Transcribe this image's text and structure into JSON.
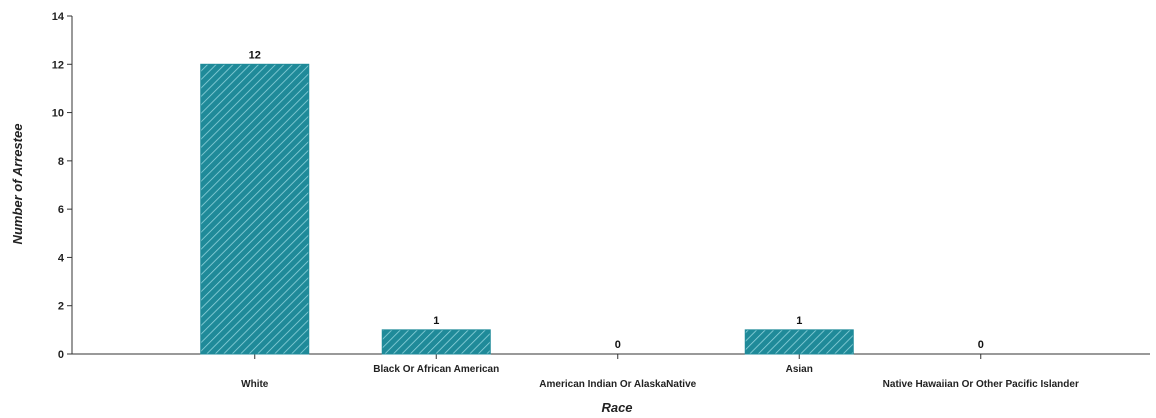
{
  "chart_data": {
    "type": "bar",
    "categories": [
      "White",
      "Black Or African American",
      "American Indian Or AlaskaNative",
      "Asian",
      "Native Hawaiian Or Other Pacific Islander"
    ],
    "values": [
      12,
      1,
      0,
      1,
      0
    ],
    "data_labels": [
      "12",
      "1",
      "0",
      "1",
      "0"
    ],
    "xlabel": "Race",
    "ylabel": "Number of Arrestee",
    "ylim": [
      0,
      14
    ],
    "yticks": [
      0,
      2,
      4,
      6,
      8,
      10,
      12,
      14
    ],
    "grid": false,
    "bar_color": "#1f8a99",
    "bar_hatch_color": "#8fd3dc"
  }
}
